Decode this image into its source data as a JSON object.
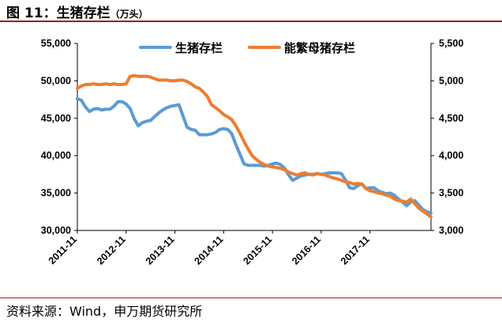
{
  "figure": {
    "title": "图 11：生猪存栏",
    "unit": "（万头）",
    "source": "资料来源：Wind，申万期货研究所"
  },
  "colors": {
    "series1": "#5b9bd5",
    "series2": "#ed7d31",
    "rule": "#9e1b1b"
  },
  "chart_data": {
    "type": "line",
    "title": "",
    "xlabel": "",
    "x_tick_labels": [
      "2011-11",
      "2012-11",
      "2013-11",
      "2014-11",
      "2015-11",
      "2016-11",
      "2017-11"
    ],
    "x_range": [
      "2011-11",
      "2018-06"
    ],
    "legend_position": "top",
    "y_left": {
      "range": [
        30000,
        55000
      ],
      "ticks": [
        "30,000",
        "35,000",
        "40,000",
        "45,000",
        "50,000",
        "55,000"
      ]
    },
    "y_right": {
      "range": [
        3000,
        5500
      ],
      "ticks": [
        "3,000",
        "3,500",
        "4,000",
        "4,500",
        "5,000",
        "5,500"
      ]
    },
    "series": [
      {
        "name": "生猪存栏",
        "axis": "left",
        "color": "#5b9bd5",
        "values": [
          47600,
          47400,
          46500,
          45900,
          46200,
          46300,
          46100,
          46200,
          46200,
          46600,
          47200,
          47200,
          46900,
          46300,
          44900,
          44000,
          44400,
          44600,
          44700,
          45200,
          45700,
          46100,
          46400,
          46600,
          46700,
          46800,
          45300,
          43800,
          43500,
          43400,
          42800,
          42800,
          42800,
          42900,
          43100,
          43500,
          43600,
          43500,
          42900,
          41500,
          40200,
          38900,
          38700,
          38700,
          38700,
          38700,
          38600,
          38700,
          38900,
          39000,
          38800,
          38300,
          37400,
          36700,
          37000,
          37300,
          37400,
          37500,
          37500,
          37600,
          37500,
          37600,
          37700,
          37700,
          37700,
          37600,
          36700,
          35700,
          35600,
          36000,
          36200,
          35600,
          35700,
          35700,
          35300,
          35100,
          34900,
          35000,
          34700,
          34200,
          33800,
          33300,
          33800,
          34000,
          33400,
          32800,
          32500,
          32300
        ]
      },
      {
        "name": "能繁母猪存栏",
        "axis": "right",
        "color": "#ed7d31",
        "values": [
          4900,
          4930,
          4950,
          4950,
          4960,
          4950,
          4950,
          4960,
          4950,
          4960,
          4950,
          4950,
          4960,
          5060,
          5070,
          5060,
          5060,
          5060,
          5050,
          5030,
          5010,
          5010,
          5010,
          5000,
          5000,
          5010,
          5010,
          4990,
          4960,
          4920,
          4900,
          4850,
          4790,
          4680,
          4640,
          4600,
          4550,
          4520,
          4480,
          4400,
          4300,
          4190,
          4090,
          4000,
          3950,
          3910,
          3880,
          3860,
          3850,
          3840,
          3830,
          3810,
          3780,
          3760,
          3740,
          3760,
          3770,
          3750,
          3740,
          3760,
          3750,
          3740,
          3720,
          3700,
          3690,
          3670,
          3650,
          3640,
          3620,
          3630,
          3620,
          3560,
          3530,
          3520,
          3500,
          3490,
          3470,
          3460,
          3420,
          3400,
          3390,
          3380,
          3420,
          3360,
          3300,
          3260,
          3220,
          3180
        ]
      }
    ]
  }
}
